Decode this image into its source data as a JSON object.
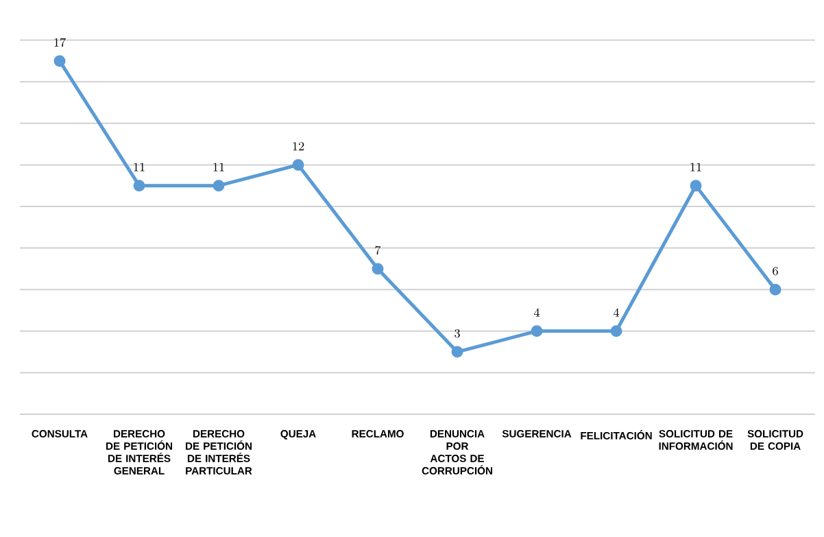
{
  "chart_data": {
    "type": "line",
    "categories": [
      "CONSULTA",
      "DERECHO DE PETICIÓN DE INTERÉS GENERAL",
      "DERECHO DE PETICIÓN DE INTERÉS PARTICULAR",
      "QUEJA",
      "RECLAMO",
      "DENUNCIA POR ACTOS DE CORRUPCIÓN",
      "SUGERENCIA",
      "FELICITACIÓN",
      "SOLICITUD DE INFORMACIÓN",
      "SOLICITUD DE COPIA"
    ],
    "series": [
      {
        "color": "#5b9bd5",
        "values": [
          17,
          11,
          11,
          12,
          7,
          3,
          4,
          4,
          11,
          6
        ]
      }
    ],
    "ylim": [
      0,
      18
    ],
    "yticks": [
      {
        "value": 0,
        "label": null
      },
      {
        "value": 2,
        "label": null
      },
      {
        "value": 4,
        "label": null
      },
      {
        "value": 6,
        "label": null
      },
      {
        "value": 8,
        "label": null
      },
      {
        "value": 10,
        "label": null
      },
      {
        "value": 12,
        "label": null
      },
      {
        "value": 14,
        "label": null
      },
      {
        "value": 16,
        "label": null
      },
      {
        "value": 18,
        "label": null
      }
    ],
    "grid": "y",
    "tick_labels": "x",
    "data_labels": true,
    "marker": "circle",
    "line_style": "solid"
  }
}
